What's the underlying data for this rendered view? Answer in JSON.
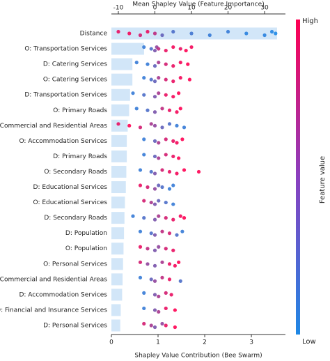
{
  "chart_data": {
    "type": "shap_summary",
    "title": "Mean Shapley Value (Feature Importance)",
    "xlabel": "Shapley Value Contribution (Bee Swarm)",
    "colorbar_label": "Feature value",
    "colorbar_high": "High",
    "colorbar_low": "Low",
    "colormap": [
      "#1e88e5",
      "#ff0052"
    ],
    "bar_color": "#d2e6f8",
    "features": [
      "Distance",
      "O: Transportation Services",
      "D: Catering Services",
      "O: Catering Services",
      "D: Transportation Services",
      "O: Primary Roads",
      "O: Commercial and Residential Areas",
      "O: Accommodation Services",
      "D: Primary Roads",
      "O: Secondary Roads",
      "D: Educational Services",
      "O: Educational Services",
      "D: Secondary Roads",
      "D: Population",
      "O: Population",
      "O: Personal Services",
      "D: Commercial and Residential Areas",
      "D: Accommodation Services",
      "D: Financial and Insurance Services",
      "D: Personal Services"
    ],
    "importance": [
      3.55,
      0.7,
      0.45,
      0.45,
      0.4,
      0.38,
      0.35,
      0.33,
      0.33,
      0.32,
      0.31,
      0.29,
      0.28,
      0.27,
      0.26,
      0.25,
      0.24,
      0.23,
      0.2,
      0.19
    ],
    "xlim": [
      0,
      3.73
    ],
    "xticks": [
      0,
      1,
      2,
      3
    ],
    "x2lim": [
      -11.9,
      35.7
    ],
    "x2ticks": [
      -10,
      0,
      10,
      20,
      30
    ],
    "points": [
      {
        "shap": [
          -10,
          -7,
          -4,
          -2,
          0,
          2,
          5,
          10,
          15,
          20,
          25,
          30,
          32,
          33
        ],
        "feature_value": [
          0.9,
          0.95,
          0.8,
          0.9,
          0.7,
          0.3,
          0.2,
          0.15,
          0.1,
          0.1,
          0.05,
          0.05,
          0.02,
          0
        ]
      },
      {
        "shap": [
          -3,
          -1,
          0,
          0.5,
          1,
          3,
          5,
          7,
          8.5,
          10
        ],
        "feature_value": [
          0.1,
          0.2,
          0.4,
          0.5,
          0.7,
          0.9,
          0.95,
          0.9,
          1,
          0.95
        ]
      },
      {
        "shap": [
          -5,
          -2,
          0,
          1,
          3,
          5,
          7,
          9
        ],
        "feature_value": [
          0.1,
          0.1,
          0.3,
          0.6,
          0.8,
          0.9,
          0.95,
          1
        ]
      },
      {
        "shap": [
          -3,
          -1,
          0,
          1,
          3,
          5,
          7,
          9.5
        ],
        "feature_value": [
          0.1,
          0.2,
          0.3,
          0.6,
          0.8,
          0.9,
          0.95,
          1
        ]
      },
      {
        "shap": [
          -6,
          -3,
          0,
          1,
          3,
          5,
          6.5
        ],
        "feature_value": [
          0.1,
          0.2,
          0.4,
          0.6,
          0.9,
          0.95,
          1
        ]
      },
      {
        "shap": [
          -5,
          -2,
          0,
          2,
          4,
          6,
          7
        ],
        "feature_value": [
          0.1,
          0.2,
          0.4,
          0.7,
          0.9,
          0.95,
          1
        ]
      },
      {
        "shap": [
          -10,
          -7,
          -4,
          -1,
          0,
          2,
          4,
          6,
          8
        ],
        "feature_value": [
          0.9,
          1,
          0.8,
          0.6,
          0.5,
          0.3,
          0.2,
          0.1,
          0.1
        ]
      },
      {
        "shap": [
          -3,
          0,
          1,
          3,
          5,
          6,
          7.5
        ],
        "feature_value": [
          0.1,
          0.3,
          0.6,
          0.8,
          0.9,
          0.95,
          1
        ]
      },
      {
        "shap": [
          -3,
          0,
          1,
          3,
          5,
          6.5
        ],
        "feature_value": [
          0.1,
          0.3,
          0.6,
          0.8,
          0.9,
          1
        ]
      },
      {
        "shap": [
          -4,
          -1,
          0,
          2,
          4,
          6,
          8,
          12
        ],
        "feature_value": [
          0.1,
          0.2,
          0.4,
          0.8,
          0.9,
          0.95,
          1,
          1
        ]
      },
      {
        "shap": [
          -4,
          -2,
          0,
          1,
          2,
          4,
          5
        ],
        "feature_value": [
          0.9,
          0.8,
          0.5,
          0.3,
          0.2,
          0.1,
          0.1
        ]
      },
      {
        "shap": [
          -3,
          -1,
          0,
          1,
          3,
          5
        ],
        "feature_value": [
          0.8,
          0.6,
          0.4,
          0.3,
          0.2,
          0.1
        ]
      },
      {
        "shap": [
          -6,
          -3,
          0,
          1,
          3,
          5,
          7,
          8
        ],
        "feature_value": [
          0.1,
          0.2,
          0.4,
          0.6,
          0.8,
          0.9,
          0.95,
          1
        ]
      },
      {
        "shap": [
          -4,
          -1,
          0,
          2,
          4,
          6,
          7.5
        ],
        "feature_value": [
          0.1,
          0.2,
          0.4,
          0.7,
          0.8,
          0.2,
          0.1
        ]
      },
      {
        "shap": [
          -4,
          -2,
          0,
          1,
          3,
          5
        ],
        "feature_value": [
          0.9,
          0.7,
          0.4,
          0.5,
          0.8,
          0.9
        ]
      },
      {
        "shap": [
          -4,
          -2,
          0,
          2,
          4,
          5.5,
          6.5
        ],
        "feature_value": [
          0.8,
          0.5,
          0.4,
          0.6,
          0.9,
          0.95,
          1
        ]
      },
      {
        "shap": [
          -4,
          -1,
          0,
          2,
          4,
          7
        ],
        "feature_value": [
          0.1,
          0.3,
          0.5,
          0.7,
          0.9,
          0.2
        ]
      },
      {
        "shap": [
          -3,
          0,
          1,
          3,
          4.5
        ],
        "feature_value": [
          0.1,
          0.4,
          0.6,
          0.8,
          0.9
        ]
      },
      {
        "shap": [
          -3,
          0,
          1,
          3,
          5.5
        ],
        "feature_value": [
          0.1,
          0.4,
          0.6,
          0.9,
          1
        ]
      },
      {
        "shap": [
          -3,
          -1,
          0,
          2,
          3,
          5.5
        ],
        "feature_value": [
          0.8,
          0.6,
          0.4,
          0.5,
          0.9,
          1
        ]
      }
    ]
  }
}
